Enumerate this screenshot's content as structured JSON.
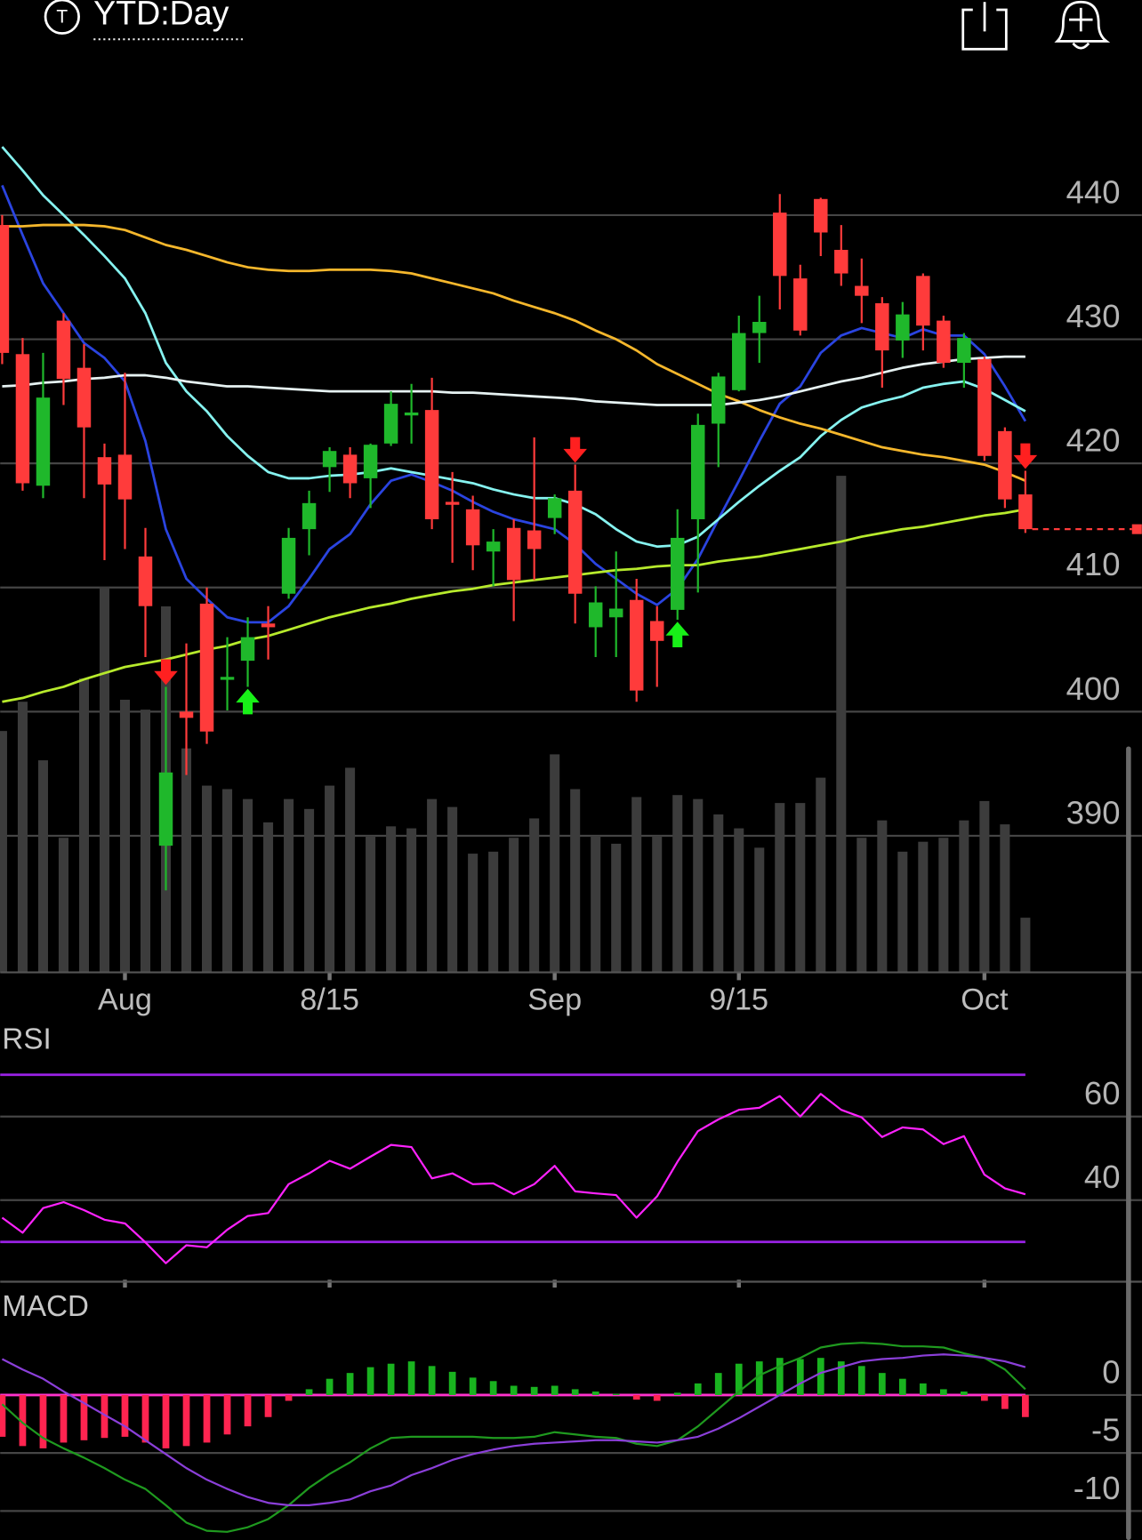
{
  "header": {
    "badge": "T",
    "period": "YTD:Day"
  },
  "chart_data": [
    {
      "type": "candlestick",
      "categories": [
        null,
        null,
        null,
        null,
        null,
        null,
        "Aug",
        null,
        null,
        null,
        null,
        null,
        null,
        null,
        null,
        null,
        "8/15",
        null,
        null,
        null,
        null,
        null,
        null,
        null,
        null,
        null,
        null,
        "Sep",
        null,
        null,
        null,
        null,
        null,
        null,
        null,
        null,
        "9/15",
        null,
        null,
        null,
        null,
        null,
        null,
        null,
        null,
        null,
        null,
        null,
        "Oct",
        null,
        null
      ],
      "open": [
        439.2,
        428.8,
        418.2,
        431.5,
        427.7,
        420.5,
        420.7,
        412.5,
        389.2,
        400.0,
        408.7,
        402.6,
        404.1,
        407.1,
        409.5,
        414.7,
        419.7,
        420.7,
        418.8,
        421.6,
        424.0,
        424.3,
        416.9,
        416.3,
        412.9,
        414.8,
        414.6,
        415.6,
        417.8,
        406.8,
        407.6,
        409.0,
        407.3,
        408.2,
        415.5,
        423.2,
        425.9,
        430.5,
        440.2,
        434.9,
        441.3,
        437.2,
        434.3,
        432.9,
        429.9,
        435.1,
        431.5,
        428.1,
        428.4,
        422.6,
        417.5
      ],
      "high": [
        440.0,
        430.1,
        428.9,
        432.1,
        429.6,
        421.6,
        427.3,
        414.8,
        402.0,
        405.5,
        410.0,
        406.0,
        407.6,
        408.5,
        414.8,
        417.8,
        421.3,
        421.3,
        421.6,
        425.8,
        426.4,
        426.9,
        419.3,
        417.4,
        414.7,
        415.5,
        422.1,
        417.5,
        419.9,
        410.1,
        412.9,
        410.7,
        408.5,
        416.3,
        424.0,
        427.3,
        431.9,
        433.5,
        441.7,
        436.0,
        441.4,
        439.2,
        436.5,
        433.4,
        433.0,
        435.3,
        431.9,
        430.5,
        428.6,
        422.9,
        419.4
      ],
      "low": [
        428.0,
        417.8,
        417.2,
        424.7,
        417.2,
        412.2,
        413.1,
        404.4,
        385.6,
        394.9,
        397.4,
        400.1,
        402.0,
        404.2,
        409.1,
        412.6,
        417.7,
        417.2,
        416.4,
        421.4,
        421.6,
        414.7,
        412.0,
        411.4,
        410.1,
        407.3,
        410.6,
        414.3,
        407.1,
        404.4,
        404.4,
        400.8,
        402.0,
        407.4,
        409.6,
        419.7,
        425.8,
        428.1,
        432.4,
        430.3,
        436.7,
        434.3,
        431.3,
        426.1,
        428.5,
        429.1,
        427.7,
        426.1,
        420.2,
        416.4,
        414.4
      ],
      "close": [
        428.9,
        418.4,
        425.3,
        426.8,
        422.9,
        418.3,
        417.1,
        408.5,
        395.1,
        399.5,
        398.4,
        402.8,
        406.0,
        406.8,
        414.0,
        416.8,
        421.0,
        418.4,
        421.5,
        424.8,
        424.1,
        415.5,
        416.7,
        413.4,
        413.7,
        410.6,
        413.1,
        417.2,
        409.5,
        408.8,
        408.3,
        401.7,
        405.7,
        414.0,
        423.1,
        427.0,
        430.5,
        431.4,
        435.1,
        430.7,
        438.6,
        435.3,
        433.5,
        429.1,
        432.0,
        431.1,
        428.1,
        430.1,
        420.6,
        417.1,
        414.7
      ],
      "up_color": "#1fb82b",
      "down_color": "#ff3b3b",
      "volume": [
        48.6,
        54.5,
        42.7,
        27.1,
        59.2,
        77.6,
        54.9,
        52.9,
        73.7,
        45.1,
        37.6,
        36.9,
        34.9,
        30.2,
        34.9,
        32.9,
        37.6,
        41.2,
        27.5,
        29.4,
        29.0,
        34.9,
        33.3,
        23.9,
        24.3,
        27.1,
        31.0,
        43.9,
        36.9,
        27.5,
        25.9,
        35.3,
        27.5,
        35.7,
        34.9,
        31.8,
        29.0,
        25.1,
        34.1,
        34.1,
        39.2,
        100,
        27.1,
        30.6,
        24.3,
        26.3,
        27.1,
        30.6,
        34.5,
        29.8,
        11.0
      ],
      "volume_lim": [
        0,
        180
      ],
      "volume_color": "#3c3c3c",
      "series": [
        {
          "color": "#2a44e0",
          "values": [
            442.4,
            438.4,
            434.5,
            432.1,
            429.7,
            428.5,
            426.6,
            421.8,
            414.7,
            410.7,
            409.1,
            407.6,
            407.2,
            407.2,
            408.5,
            410.7,
            413.1,
            414.3,
            416.7,
            418.6,
            419.1,
            418.5,
            417.8,
            416.9,
            416.1,
            415.5,
            415.1,
            414.7,
            413.5,
            411.9,
            410.7,
            409.5,
            408.6,
            409.9,
            412.3,
            415.5,
            418.6,
            421.8,
            424.8,
            426.2,
            428.9,
            430.3,
            430.9,
            430.5,
            430.1,
            430.8,
            430.3,
            430.3,
            428.8,
            426.2,
            423.4
          ]
        },
        {
          "color": "#86f3f0",
          "values": [
            445.5,
            443.6,
            441.6,
            440.0,
            438.4,
            436.7,
            434.9,
            432.1,
            428.1,
            425.8,
            424.2,
            422.2,
            420.6,
            419.3,
            418.8,
            418.8,
            419.0,
            419.1,
            419.3,
            419.6,
            419.3,
            419.0,
            418.7,
            418.4,
            417.9,
            417.5,
            417.2,
            417.2,
            416.7,
            415.9,
            414.7,
            413.7,
            413.3,
            413.4,
            414.1,
            415.5,
            416.9,
            418.2,
            419.4,
            420.5,
            422.2,
            423.5,
            424.5,
            425.0,
            425.4,
            426.1,
            426.4,
            426.6,
            426.0,
            425.1,
            424.2
          ]
        },
        {
          "color": "#f5b72c",
          "values": [
            439.1,
            439.1,
            439.2,
            439.2,
            439.2,
            439.1,
            438.8,
            438.2,
            437.6,
            437.2,
            436.7,
            436.2,
            435.8,
            435.6,
            435.5,
            435.5,
            435.6,
            435.6,
            435.6,
            435.5,
            435.3,
            434.9,
            434.5,
            434.1,
            433.7,
            433.1,
            432.6,
            432.1,
            431.5,
            430.7,
            430.0,
            429.1,
            428.0,
            427.2,
            426.4,
            425.6,
            425.0,
            424.3,
            423.7,
            423.2,
            422.8,
            422.3,
            421.8,
            421.3,
            421.0,
            420.7,
            420.5,
            420.2,
            419.9,
            419.3,
            418.6
          ]
        },
        {
          "color": "#e6f2f2",
          "values": [
            426.2,
            426.3,
            426.5,
            426.6,
            426.8,
            426.9,
            427.1,
            427.1,
            426.9,
            426.6,
            426.4,
            426.2,
            426.2,
            426.1,
            426.0,
            425.9,
            425.8,
            425.8,
            425.8,
            425.8,
            425.8,
            425.8,
            425.7,
            425.7,
            425.6,
            425.5,
            425.4,
            425.3,
            425.2,
            425.0,
            424.9,
            424.8,
            424.7,
            424.7,
            424.7,
            424.7,
            424.9,
            425.1,
            425.4,
            425.8,
            426.2,
            426.6,
            426.9,
            427.3,
            427.7,
            428.0,
            428.2,
            428.4,
            428.5,
            428.6,
            428.6
          ]
        },
        {
          "color": "#b7ea2c",
          "values": [
            400.8,
            401.1,
            401.6,
            402.0,
            402.6,
            403.1,
            403.6,
            403.9,
            404.2,
            404.6,
            405.0,
            405.3,
            405.8,
            406.1,
            406.6,
            407.1,
            407.6,
            408.0,
            408.4,
            408.7,
            409.1,
            409.4,
            409.7,
            409.9,
            410.2,
            410.4,
            410.6,
            410.8,
            411.0,
            411.2,
            411.4,
            411.5,
            411.7,
            411.8,
            411.8,
            412.1,
            412.3,
            412.5,
            412.8,
            413.1,
            413.4,
            413.7,
            414.1,
            414.4,
            414.7,
            414.9,
            415.2,
            415.5,
            415.8,
            416.0,
            416.3
          ]
        }
      ],
      "sell_signals": [
        8,
        28,
        50
      ],
      "sell_color": "#ff2020",
      "buy_signals": [
        12,
        33
      ],
      "buy_color": "#18f018",
      "ylim": [
        379,
        451
      ],
      "yticks": [
        390,
        400,
        410,
        420,
        430,
        440
      ],
      "grid": true
    },
    {
      "type": "line",
      "title": "RSI",
      "series": [
        {
          "color": "#ff22ff",
          "values": [
            35.8,
            32.2,
            38.1,
            39.5,
            37.6,
            35.3,
            34.4,
            29.9,
            24.9,
            29.2,
            28.7,
            32.9,
            36.2,
            36.9,
            43.8,
            46.4,
            49.4,
            47.5,
            50.4,
            53.2,
            52.7,
            45.2,
            46.4,
            43.8,
            44.0,
            41.4,
            43.8,
            48.2,
            42.1,
            41.6,
            41.2,
            35.8,
            40.9,
            49.2,
            56.5,
            59.3,
            61.6,
            62.1,
            64.9,
            60.0,
            65.4,
            61.6,
            59.8,
            55.1,
            57.4,
            56.9,
            53.4,
            55.3,
            46.1,
            42.8,
            41.4
          ]
        }
      ],
      "bands": [
        30,
        70
      ],
      "band_color": "#9a22e6",
      "ylim": [
        20,
        75
      ],
      "yticks": [
        40,
        60
      ],
      "grid": true
    },
    {
      "type": "line",
      "title": "MACD",
      "series": [
        {
          "type": "bar",
          "color": "#19b31f",
          "negative_color": "#ff2450",
          "values": [
            -3.6,
            -4.4,
            -4.6,
            -4.1,
            -3.9,
            -3.7,
            -3.6,
            -4.1,
            -4.6,
            -4.4,
            -4.1,
            -3.4,
            -2.7,
            -1.9,
            -0.5,
            0.5,
            1.4,
            1.9,
            2.4,
            2.7,
            2.9,
            2.5,
            2.0,
            1.5,
            1.2,
            0.8,
            0.7,
            0.8,
            0.5,
            0.3,
            0.1,
            -0.4,
            -0.5,
            0.2,
            1.0,
            1.9,
            2.7,
            2.9,
            3.2,
            3.1,
            3.2,
            2.9,
            2.5,
            1.9,
            1.4,
            1.0,
            0.5,
            0.3,
            -0.5,
            -1.2,
            -1.9
          ]
        },
        {
          "color": "#1f9a1f",
          "values": [
            -0.8,
            -2.4,
            -3.7,
            -4.6,
            -5.4,
            -6.3,
            -7.3,
            -8.1,
            -9.5,
            -11.0,
            -11.7,
            -11.8,
            -11.4,
            -10.7,
            -9.5,
            -8.0,
            -6.8,
            -5.8,
            -4.6,
            -3.7,
            -3.6,
            -3.6,
            -3.6,
            -3.6,
            -3.7,
            -3.7,
            -3.6,
            -3.2,
            -3.4,
            -3.6,
            -3.7,
            -4.2,
            -4.4,
            -3.9,
            -2.7,
            -1.2,
            0.3,
            1.7,
            2.5,
            3.2,
            4.1,
            4.4,
            4.5,
            4.4,
            4.2,
            4.2,
            4.1,
            3.6,
            3.2,
            2.2,
            0.5
          ]
        },
        {
          "color": "#8b3fd9",
          "values": [
            3.1,
            2.2,
            1.4,
            0.3,
            -0.7,
            -1.7,
            -2.7,
            -3.9,
            -5.1,
            -6.3,
            -7.3,
            -8.1,
            -8.8,
            -9.3,
            -9.5,
            -9.5,
            -9.3,
            -9.0,
            -8.3,
            -7.8,
            -6.9,
            -6.3,
            -5.6,
            -5.1,
            -4.7,
            -4.4,
            -4.2,
            -4.1,
            -4.0,
            -3.9,
            -3.9,
            -4.0,
            -4.1,
            -3.9,
            -3.6,
            -2.9,
            -2.0,
            -1.0,
            0.0,
            1.0,
            1.9,
            2.4,
            2.9,
            3.1,
            3.2,
            3.4,
            3.5,
            3.4,
            3.2,
            2.9,
            2.4
          ]
        }
      ],
      "zero_line_color": "#ff33cc",
      "ylim": [
        -12.5,
        8.5
      ],
      "yticks": [
        0,
        -5,
        -10
      ],
      "grid": true
    }
  ]
}
